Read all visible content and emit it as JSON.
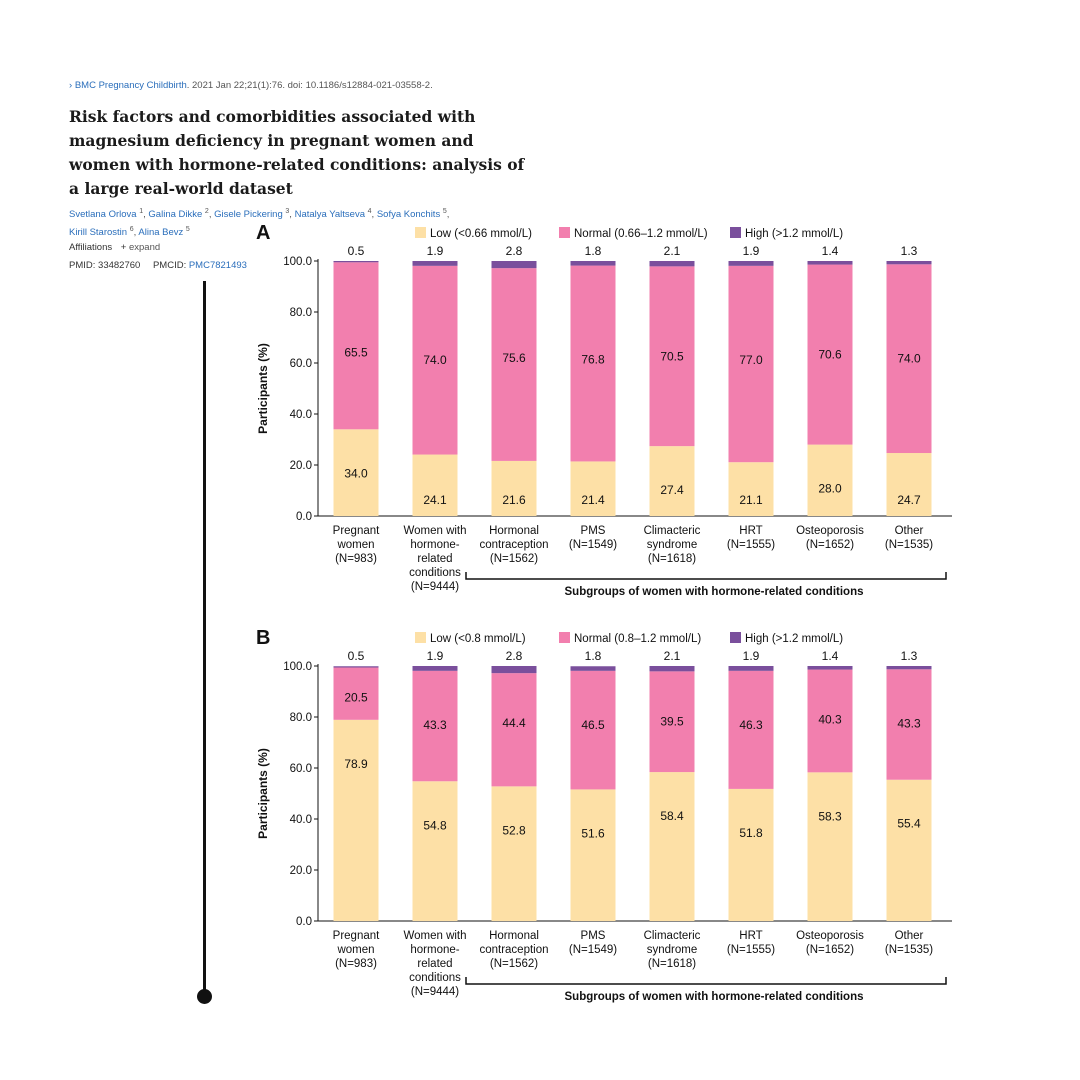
{
  "citation": {
    "arrow": "›",
    "journal": "BMC Pregnancy Childbirth",
    "details": ". 2021 Jan 22;21(1):76. doi: 10.1186/s12884-021-03558-2."
  },
  "title": "Risk factors and comorbidities associated with magnesium deficiency in pregnant women and women with hormone-related conditions: analysis of a large real-world dataset",
  "authors": [
    {
      "name": "Svetlana Orlova",
      "sup": "1"
    },
    {
      "name": "Galina Dikke",
      "sup": "2"
    },
    {
      "name": "Gisele Pickering",
      "sup": "3"
    },
    {
      "name": "Natalya Yaltseva",
      "sup": "4"
    },
    {
      "name": "Sofya Konchits",
      "sup": "5"
    },
    {
      "name": "Kirill Starostin",
      "sup": "6"
    },
    {
      "name": "Alina Bevz",
      "sup": "5"
    }
  ],
  "affiliations": {
    "label": "Affiliations",
    "expand_icon": "plus-icon",
    "expand": "expand"
  },
  "ids": {
    "pmid_label": "PMID:",
    "pmid": "33482760",
    "pmcid_label": "PMCID:",
    "pmcid": "PMC7821493"
  },
  "chart_data": [
    {
      "type": "bar",
      "stacked": true,
      "panel_label": "A",
      "categories": [
        "Pregnant\nwomen\n(N=983)",
        "Women with\nhormone-\nrelated\nconditions\n(N=9444)",
        "Hormonal\ncontraception\n(N=1562)",
        "PMS\n(N=1549)",
        "Climacteric\nsyndrome\n(N=1618)",
        "HRT\n(N=1555)",
        "Osteoporosis\n(N=1652)",
        "Other\n(N=1535)"
      ],
      "series": [
        {
          "name": "Low (<0.66 mmol/L)",
          "color": "#fde0a6",
          "values": [
            34.0,
            24.1,
            21.6,
            21.4,
            27.4,
            21.1,
            28.0,
            24.7
          ]
        },
        {
          "name": "Normal (0.66–1.2 mmol/L)",
          "color": "#f27fae",
          "values": [
            65.5,
            74.0,
            75.6,
            76.8,
            70.5,
            77.0,
            70.6,
            74.0
          ]
        },
        {
          "name": "High (>1.2 mmol/L)",
          "color": "#7a4f9c",
          "values": [
            0.5,
            1.9,
            2.8,
            1.8,
            2.1,
            1.9,
            1.4,
            1.3
          ]
        }
      ],
      "ylabel": "Participants (%)",
      "yticks": [
        "0.0",
        "20.0",
        "40.0",
        "60.0",
        "80.0",
        "100.0"
      ],
      "ylim": [
        0,
        100
      ],
      "legend": "top",
      "bracket_label": "Subgroups of women with hormone-related conditions",
      "bracket_from_category": 2
    },
    {
      "type": "bar",
      "stacked": true,
      "panel_label": "B",
      "categories": [
        "Pregnant\nwomen\n(N=983)",
        "Women with\nhormone-\nrelated\nconditions\n(N=9444)",
        "Hormonal\ncontraception\n(N=1562)",
        "PMS\n(N=1549)",
        "Climacteric\nsyndrome\n(N=1618)",
        "HRT\n(N=1555)",
        "Osteoporosis\n(N=1652)",
        "Other\n(N=1535)"
      ],
      "series": [
        {
          "name": "Low (<0.8 mmol/L)",
          "color": "#fde0a6",
          "values": [
            78.9,
            54.8,
            52.8,
            51.6,
            58.4,
            51.8,
            58.3,
            55.4
          ]
        },
        {
          "name": "Normal (0.8–1.2 mmol/L)",
          "color": "#f27fae",
          "values": [
            20.5,
            43.3,
            44.4,
            46.5,
            39.5,
            46.3,
            40.3,
            43.3
          ]
        },
        {
          "name": "High (>1.2 mmol/L)",
          "color": "#7a4f9c",
          "values": [
            0.5,
            1.9,
            2.8,
            1.8,
            2.1,
            1.9,
            1.4,
            1.3
          ]
        }
      ],
      "ylabel": "Participants (%)",
      "yticks": [
        "0.0",
        "20.0",
        "40.0",
        "60.0",
        "80.0",
        "100.0"
      ],
      "ylim": [
        0,
        100
      ],
      "legend": "top",
      "bracket_label": "Subgroups of women with hormone-related conditions",
      "bracket_from_category": 2
    }
  ]
}
